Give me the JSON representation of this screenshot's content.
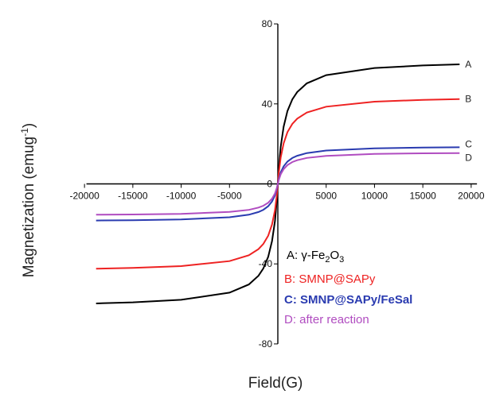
{
  "chart_data": {
    "type": "line",
    "xlabel": "Field(G)",
    "ylabel": "Magnetization (emug",
    "ylabel_superscript": "-1",
    "ylabel_close": ")",
    "xlim": [
      -21000,
      21000
    ],
    "ylim": [
      -84,
      84
    ],
    "x_ticks": [
      -20000,
      -15000,
      -10000,
      -5000,
      5000,
      10000,
      15000,
      20000
    ],
    "x_tick_labels": [
      "-20000",
      "-15000",
      "-10000",
      "-5000",
      "5000",
      "10000",
      "15000",
      "20000"
    ],
    "y_ticks": [
      -80,
      -40,
      0,
      40,
      80
    ],
    "y_tick_labels": [
      "-80",
      "-40",
      "0",
      "40",
      "80"
    ],
    "series": [
      {
        "name": "A",
        "color": "#000000",
        "ms": 62
      },
      {
        "name": "B",
        "color": "#ee2222",
        "ms": 44
      },
      {
        "name": "C",
        "color": "#2a3bb0",
        "ms": 19
      },
      {
        "name": "D",
        "color": "#b04cc0",
        "ms": 16
      }
    ],
    "x_points": [
      -18800,
      -15000,
      -10000,
      -5000,
      -3000,
      -2000,
      -1500,
      -1000,
      -600,
      -300,
      -100,
      0,
      100,
      300,
      600,
      1000,
      1500,
      2000,
      3000,
      5000,
      10000,
      15000,
      18800
    ],
    "legend": [
      {
        "prefix": "A:  ",
        "name": "γ-Fe",
        "sub1": "2",
        "mid": "O",
        "sub2": "3",
        "color": "#000000"
      },
      {
        "prefix": "B: ",
        "name": "SMNP@SAPy",
        "color": "#ee2222"
      },
      {
        "prefix": "C: ",
        "name": "SMNP@SAPy/FeSal",
        "color": "#2a3bb0"
      },
      {
        "prefix": "D: ",
        "name": "after reaction",
        "color": "#b04cc0"
      }
    ],
    "legend_position": "bottom-right",
    "grid": false
  }
}
